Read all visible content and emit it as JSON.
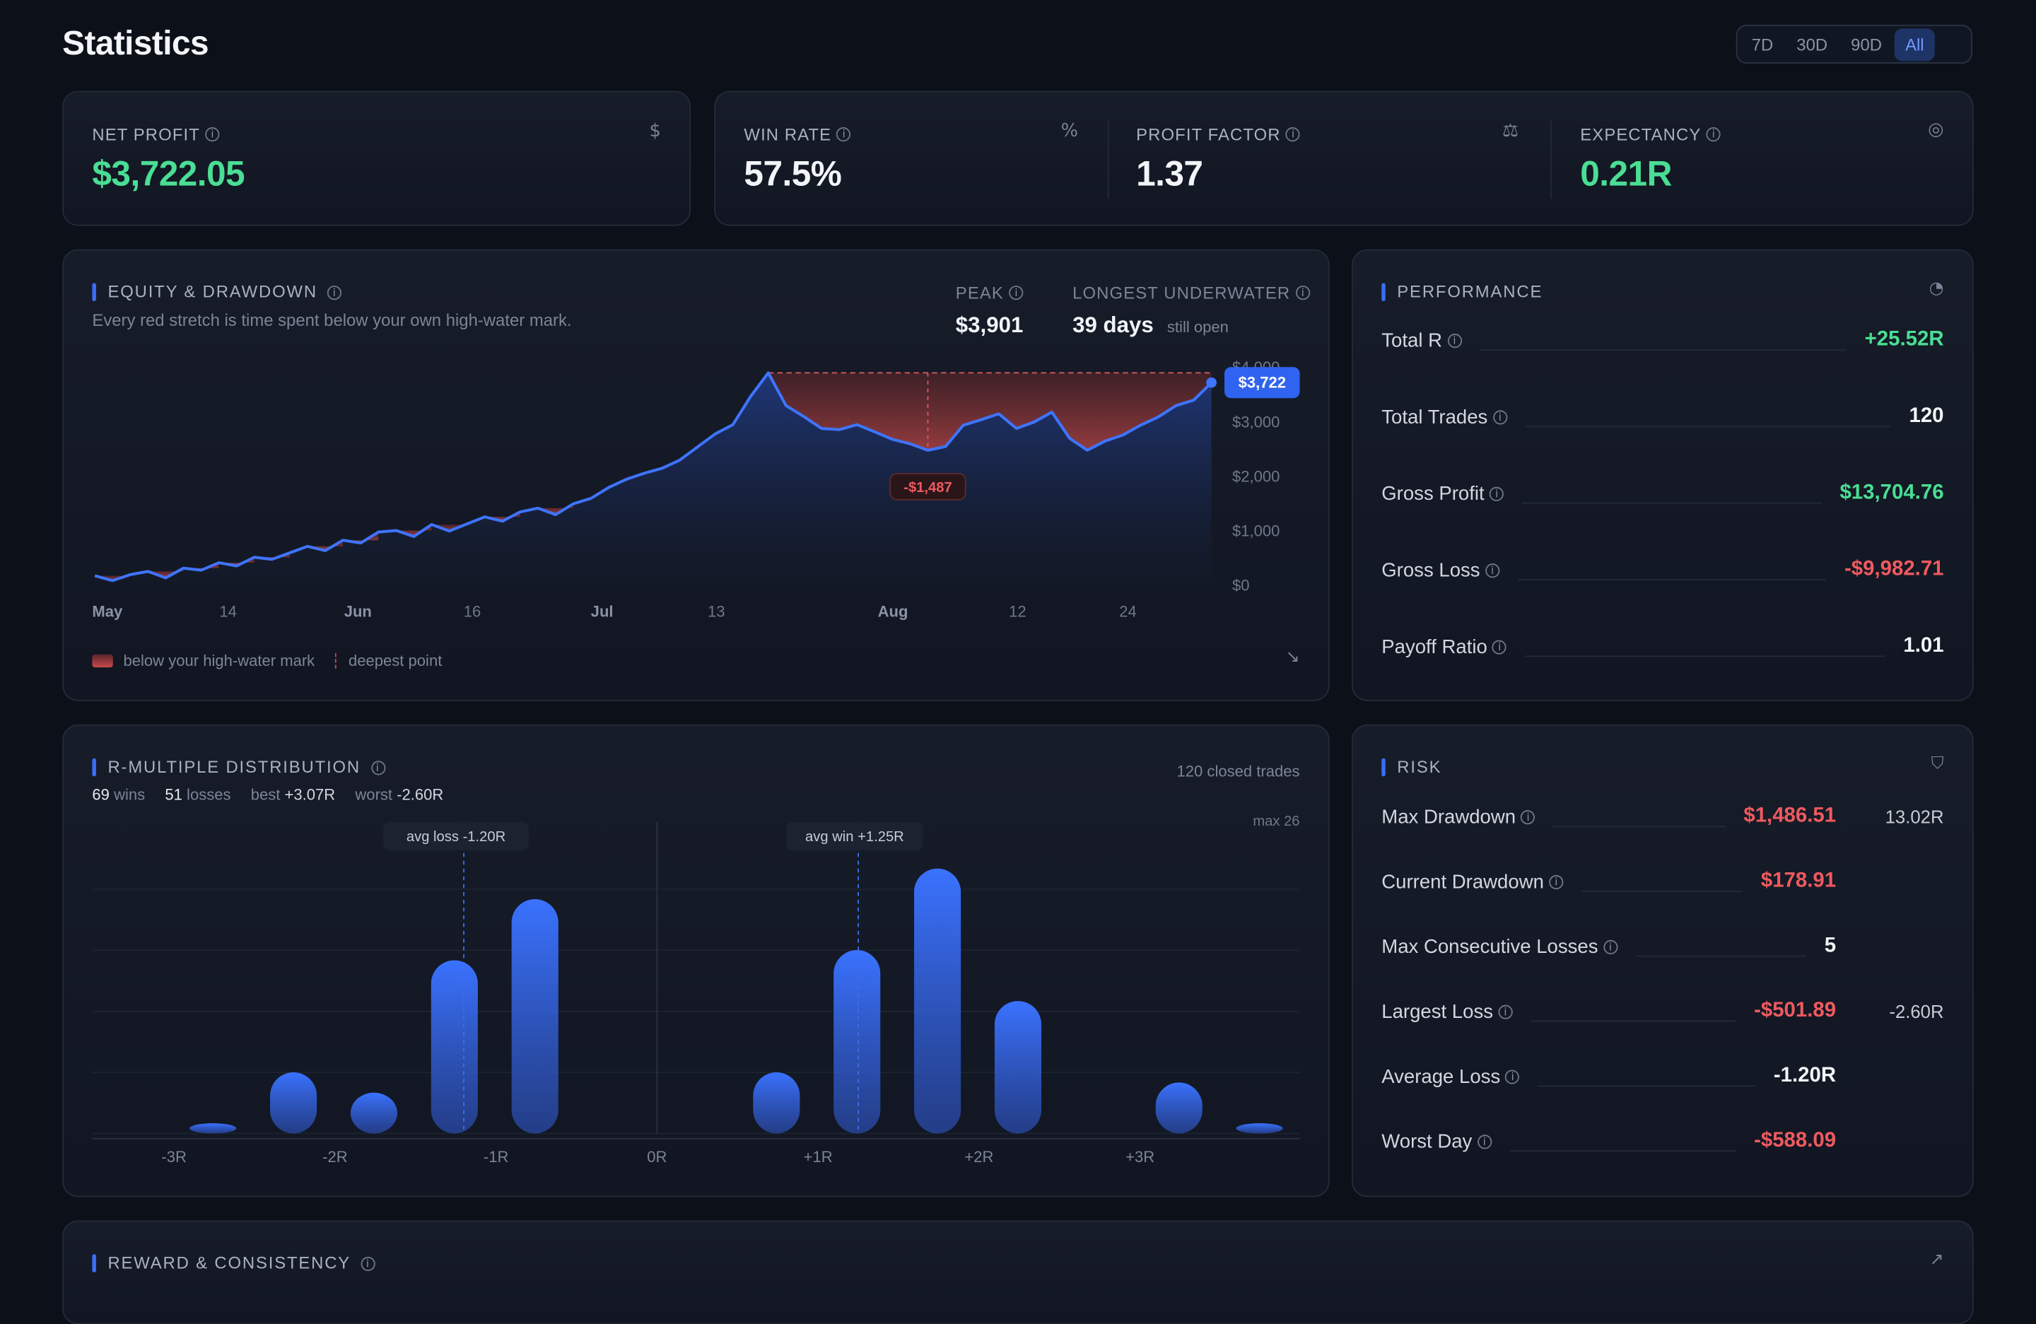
{
  "page": {
    "title": "Statistics"
  },
  "range": {
    "options": [
      "7D",
      "30D",
      "90D",
      "All"
    ],
    "active": "All"
  },
  "kpis": {
    "net_profit": {
      "label": "NET PROFIT",
      "value": "$3,722.05",
      "icon": "dollar-icon"
    },
    "win_rate": {
      "label": "WIN RATE",
      "value": "57.5%",
      "icon": "percent-icon"
    },
    "profit_factor": {
      "label": "PROFIT FACTOR",
      "value": "1.37",
      "icon": "scale-icon"
    },
    "expectancy": {
      "label": "EXPECTANCY",
      "value": "0.21R",
      "icon": "target-icon"
    }
  },
  "equity": {
    "title": "EQUITY & DRAWDOWN",
    "subtitle": "Every red stretch is time spent below your own high-water mark.",
    "peak_label": "PEAK",
    "peak_value": "$3,901",
    "underwater_label": "LONGEST UNDERWATER",
    "underwater_value": "39 days",
    "underwater_note": "still open",
    "current_badge": "$3,722",
    "deepest_badge": "-$1,487",
    "legend_below": "below your high-water mark",
    "legend_deepest": "deepest point",
    "x_ticks": [
      "May",
      "14",
      "Jun",
      "16",
      "Jul",
      "13",
      "Aug",
      "12",
      "24"
    ],
    "y_ticks": [
      "$4,000",
      "$3,000",
      "$2,000",
      "$1,000",
      "$0"
    ]
  },
  "performance": {
    "title": "PERFORMANCE",
    "rows": [
      {
        "label": "Total R",
        "value": "+25.52R",
        "tone": "green"
      },
      {
        "label": "Total Trades",
        "value": "120",
        "tone": "white"
      },
      {
        "label": "Gross Profit",
        "value": "$13,704.76",
        "tone": "green"
      },
      {
        "label": "Gross Loss",
        "value": "-$9,982.71",
        "tone": "red"
      },
      {
        "label": "Payoff Ratio",
        "value": "1.01",
        "tone": "white"
      }
    ]
  },
  "distribution": {
    "title": "R-MULTIPLE DISTRIBUTION",
    "wins": "69",
    "wins_label": "wins",
    "losses": "51",
    "losses_label": "losses",
    "best_label": "best",
    "best": "+3.07R",
    "worst_label": "worst",
    "worst": "-2.60R",
    "closed": "120 closed trades",
    "max_label": "max 26",
    "avg_loss": "avg loss -1.20R",
    "avg_win": "avg win +1.25R"
  },
  "risk": {
    "title": "RISK",
    "rows": [
      {
        "label": "Max Drawdown",
        "value": "$1,486.51",
        "tone": "red",
        "extra": "13.02R"
      },
      {
        "label": "Current Drawdown",
        "value": "$178.91",
        "tone": "red",
        "extra": ""
      },
      {
        "label": "Max Consecutive Losses",
        "value": "5",
        "tone": "white",
        "extra": ""
      },
      {
        "label": "Largest Loss",
        "value": "-$501.89",
        "tone": "red",
        "extra": "-2.60R"
      },
      {
        "label": "Average Loss",
        "value": "-1.20R",
        "tone": "white",
        "extra": ""
      },
      {
        "label": "Worst Day",
        "value": "-$588.09",
        "tone": "red",
        "extra": ""
      }
    ]
  },
  "reward": {
    "title": "REWARD & CONSISTENCY"
  },
  "chart_data": [
    {
      "type": "area",
      "ylim": [
        0,
        4000
      ],
      "y_ticks": [
        0,
        1000,
        2000,
        3000,
        4000
      ],
      "x_ticks": [
        "May",
        "14",
        "Jun",
        "16",
        "Jul",
        "13",
        "Aug",
        "12",
        "24"
      ],
      "equity": [
        180,
        90,
        200,
        260,
        140,
        320,
        280,
        420,
        360,
        520,
        480,
        600,
        720,
        640,
        830,
        780,
        980,
        1010,
        900,
        1120,
        1000,
        1130,
        1260,
        1180,
        1350,
        1420,
        1300,
        1500,
        1600,
        1800,
        1950,
        2060,
        2150,
        2300,
        2540,
        2780,
        2950,
        3470,
        3901,
        3300,
        3100,
        2880,
        2860,
        2950,
        2820,
        2680,
        2600,
        2480,
        2550,
        2940,
        3040,
        3150,
        2880,
        3000,
        3180,
        2700,
        2480,
        2650,
        2760,
        2940,
        3090,
        3300,
        3400,
        3722
      ],
      "peak": 3901,
      "deepest_drawdown": -1487,
      "current": 3722
    },
    {
      "type": "bar",
      "categories": [
        "-3R",
        "-2.5R",
        "-2R",
        "-1.5R",
        "-1R",
        "-0.5R",
        "0R",
        "0.5R",
        "1R",
        "1.5R",
        "2R",
        "2.5R",
        "3R",
        "3.5R"
      ],
      "values": [
        1,
        6,
        4,
        17,
        23,
        0,
        0,
        6,
        18,
        26,
        13,
        0,
        5,
        1
      ],
      "x_ticks": [
        "-3R",
        "-2R",
        "-1R",
        "0R",
        "+1R",
        "+2R",
        "+3R"
      ],
      "avg_loss": -1.2,
      "avg_win": 1.25,
      "max": 26
    }
  ]
}
